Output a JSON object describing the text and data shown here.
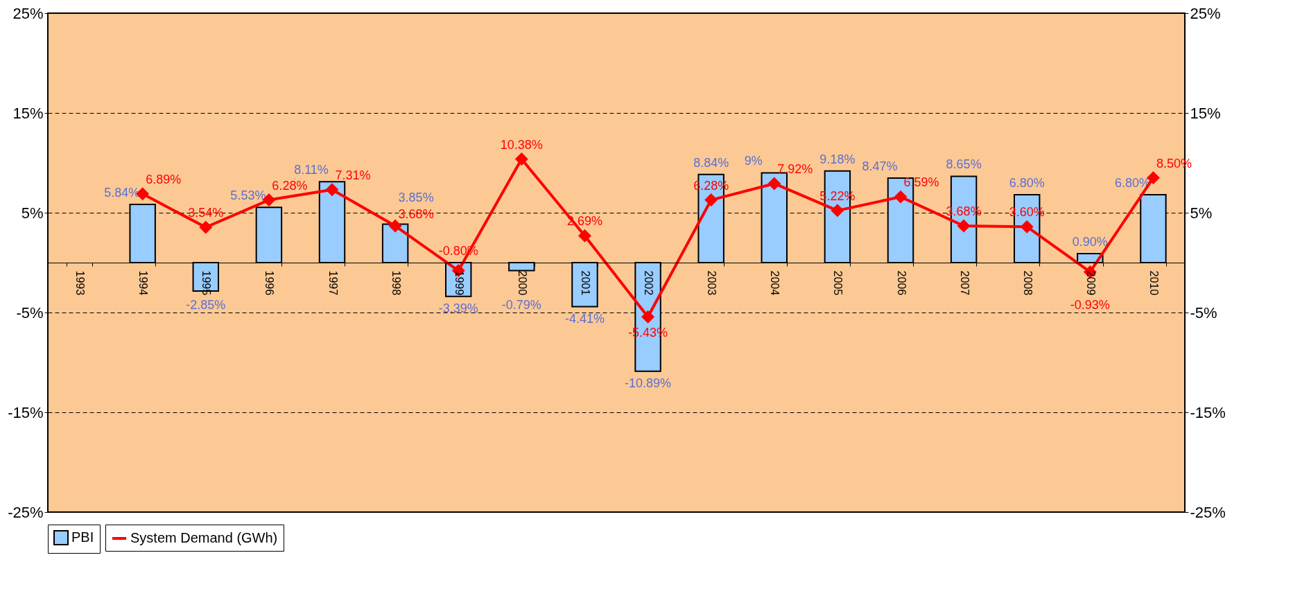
{
  "chart_data": {
    "type": "bar",
    "categories": [
      "1993",
      "1994",
      "1995",
      "1996",
      "1997",
      "1998",
      "1999",
      "2000",
      "2001",
      "2002",
      "2003",
      "2004",
      "2005",
      "2006",
      "2007",
      "2008",
      "2009",
      "2010"
    ],
    "series": [
      {
        "name": "PBI",
        "color": "#99ccff",
        "values": [
          null,
          5.84,
          -2.85,
          5.53,
          8.11,
          3.85,
          -3.39,
          -0.79,
          -4.41,
          -10.89,
          8.84,
          9,
          9.18,
          8.47,
          8.65,
          6.8,
          0.9,
          6.8
        ],
        "value_labels": [
          null,
          "5.84%",
          "-2.85%",
          "5.53%",
          "8.11%",
          "3.85%",
          "-3.39%",
          "-0.79%",
          "-4.41%",
          "-10.89%",
          "8.84%",
          "9%",
          "9.18%",
          "8.47%",
          "8.65%",
          "6.80%",
          "0.90%",
          "6.80%"
        ]
      },
      {
        "name": "System Demand (GWh)",
        "type": "line",
        "axis": "y2",
        "color": "#ff0000",
        "marker": "diamond",
        "values": [
          null,
          6.89,
          3.54,
          6.28,
          7.31,
          3.68,
          -0.8,
          10.38,
          2.69,
          -5.43,
          6.28,
          7.92,
          5.22,
          6.59,
          3.68,
          3.6,
          -0.93,
          8.5
        ],
        "value_labels": [
          null,
          "6.89%",
          "3.54%",
          "6.28%",
          "7.31%",
          "3.68%",
          "-0.80%",
          "10.38%",
          "2.69%",
          "-5.43%",
          "6.28%",
          "7.92%",
          "5.22%",
          "6.59%",
          "3.68%",
          "3.60%",
          "-0.93%",
          "8.50%"
        ]
      }
    ],
    "ylim": [
      -25,
      25
    ],
    "yticks": [
      {
        "value": -25,
        "label": "-25%"
      },
      {
        "value": -15,
        "label": "-15%"
      },
      {
        "value": -5,
        "label": "-5%"
      },
      {
        "value": 5,
        "label": "5%"
      },
      {
        "value": 15,
        "label": "15%"
      },
      {
        "value": 25,
        "label": "25%"
      }
    ],
    "y2lim": [
      -25,
      25
    ],
    "y2ticks": [
      {
        "value": -25,
        "label": "-25%"
      },
      {
        "value": -15,
        "label": "-15%"
      },
      {
        "value": -5,
        "label": "-5%"
      },
      {
        "value": 5,
        "label": "5%"
      },
      {
        "value": 15,
        "label": "15%"
      },
      {
        "value": 25,
        "label": "25%"
      }
    ],
    "grid": "y",
    "legend": "bottom"
  }
}
